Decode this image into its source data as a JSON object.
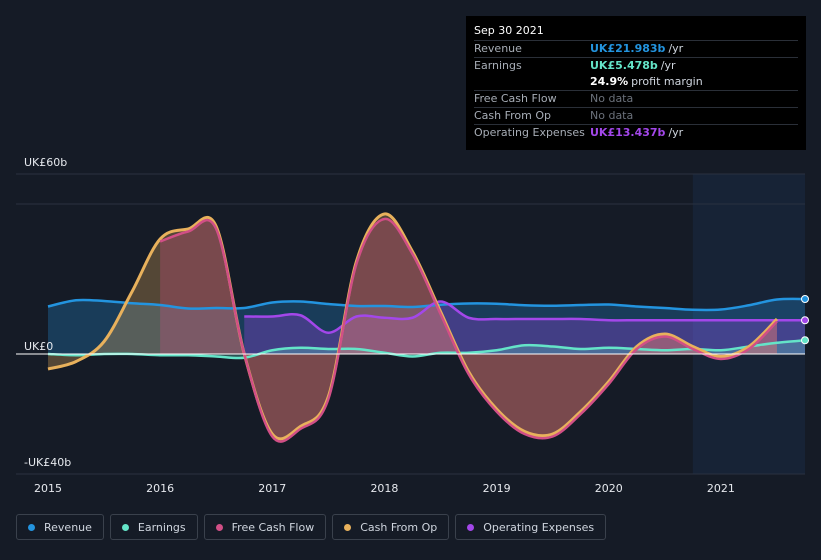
{
  "tooltip": {
    "date": "Sep 30 2021",
    "revenue_label": "Revenue",
    "revenue_value": "UK£21.983b",
    "revenue_unit": "/yr",
    "earnings_label": "Earnings",
    "earnings_value": "UK£5.478b",
    "earnings_unit": "/yr",
    "margin_value": "24.9%",
    "margin_text": "profit margin",
    "fcf_label": "Free Cash Flow",
    "fcf_value": "No data",
    "cfo_label": "Cash From Op",
    "cfo_value": "No data",
    "opex_label": "Operating Expenses",
    "opex_value": "UK£13.437b",
    "opex_unit": "/yr"
  },
  "legend": [
    {
      "label": "Revenue",
      "color": "#2394df"
    },
    {
      "label": "Earnings",
      "color": "#64e4c8"
    },
    {
      "label": "Free Cash Flow",
      "color": "#d14f86"
    },
    {
      "label": "Cash From Op",
      "color": "#e8b15c"
    },
    {
      "label": "Operating Expenses",
      "color": "#a347ea"
    }
  ],
  "chart_data": {
    "type": "area",
    "y_tick_labels": [
      "UK£60b",
      "UK£0",
      "-UK£40b"
    ],
    "y_ticks": [
      60,
      0,
      -40
    ],
    "ylim": [
      -40,
      60
    ],
    "x_tick_labels": [
      "2015",
      "2016",
      "2017",
      "2018",
      "2019",
      "2020",
      "2021"
    ],
    "xlim": [
      2015,
      2021.75
    ],
    "forecast_start": 2020.75,
    "series": [
      {
        "name": "Revenue",
        "color": "#2394df",
        "x": [
          2015,
          2015.25,
          2015.5,
          2015.75,
          2016,
          2016.25,
          2016.5,
          2016.75,
          2017,
          2017.25,
          2017.5,
          2017.75,
          2018,
          2018.25,
          2018.5,
          2018.75,
          2019,
          2019.25,
          2019.5,
          2019.75,
          2020,
          2020.25,
          2020.5,
          2020.75,
          2021,
          2021.25,
          2021.5,
          2021.75
        ],
        "y": [
          19,
          21.5,
          21.2,
          20.3,
          19.6,
          18.2,
          18.4,
          18.4,
          20.6,
          21.0,
          20.0,
          19.2,
          19.2,
          18.8,
          19.7,
          20.2,
          20.1,
          19.5,
          19.3,
          19.6,
          19.8,
          19.0,
          18.4,
          17.7,
          17.8,
          19.5,
          21.8,
          22.0
        ]
      },
      {
        "name": "Earnings",
        "color": "#64e4c8",
        "x": [
          2015,
          2015.25,
          2015.5,
          2015.75,
          2016,
          2016.25,
          2016.5,
          2016.75,
          2017,
          2017.25,
          2017.5,
          2017.75,
          2018,
          2018.25,
          2018.5,
          2018.75,
          2019,
          2019.25,
          2019.5,
          2019.75,
          2020,
          2020.25,
          2020.5,
          2020.75,
          2021,
          2021.25,
          2021.5,
          2021.75
        ],
        "y": [
          0,
          -0.5,
          0,
          0,
          -0.5,
          -0.5,
          -1.0,
          -1.5,
          1.5,
          2.5,
          2.0,
          2.0,
          0.5,
          -1.0,
          0.5,
          0.5,
          1.5,
          3.5,
          3.0,
          2.0,
          2.5,
          2.0,
          1.5,
          2.0,
          1.5,
          3.0,
          4.5,
          5.5
        ]
      },
      {
        "name": "Operating Expenses",
        "color": "#a347ea",
        "x": [
          2016.75,
          2017,
          2017.25,
          2017.5,
          2017.75,
          2018,
          2018.25,
          2018.5,
          2018.75,
          2019,
          2019.25,
          2019.5,
          2019.75,
          2020,
          2020.25,
          2020.5,
          2020.75,
          2021,
          2021.25,
          2021.5,
          2021.75
        ],
        "y": [
          15.0,
          15.0,
          15.5,
          8.5,
          15.0,
          14.5,
          14.5,
          21.0,
          14.5,
          14.0,
          14.0,
          14.0,
          14.0,
          13.5,
          13.5,
          13.5,
          13.5,
          13.5,
          13.5,
          13.5,
          13.5
        ]
      },
      {
        "name": "Free Cash Flow",
        "color": "#d14f86",
        "x": [
          2016,
          2016.25,
          2016.5,
          2016.75,
          2017,
          2017.25,
          2017.5,
          2017.75,
          2018,
          2018.25,
          2018.5,
          2018.75,
          2019,
          2019.25,
          2019.5,
          2019.75,
          2020,
          2020.25,
          2020.5,
          2020.75,
          2021,
          2021.25,
          2021.5
        ],
        "y": [
          45,
          49,
          50,
          0,
          -33,
          -30,
          -18,
          36,
          54,
          40,
          16,
          -8,
          -23,
          -32,
          -33,
          -24,
          -12,
          2,
          7,
          2,
          -2,
          2,
          13
        ]
      },
      {
        "name": "Cash From Op",
        "color": "#e8b15c",
        "x": [
          2015,
          2015.25,
          2015.5,
          2015.75,
          2016,
          2016.25,
          2016.5,
          2016.75,
          2017,
          2017.25,
          2017.5,
          2017.75,
          2018,
          2018.25,
          2018.5,
          2018.75,
          2019,
          2019.25,
          2019.5,
          2019.75,
          2020,
          2020.25,
          2020.5,
          2020.75,
          2021,
          2021.25,
          2021.5
        ],
        "y": [
          -6,
          -3,
          5,
          25,
          46,
          50,
          51,
          0,
          -32,
          -29,
          -17,
          37,
          56,
          41,
          17,
          -7,
          -22,
          -31,
          -32,
          -23,
          -11,
          3,
          8,
          3,
          -1,
          3,
          14
        ]
      }
    ]
  }
}
